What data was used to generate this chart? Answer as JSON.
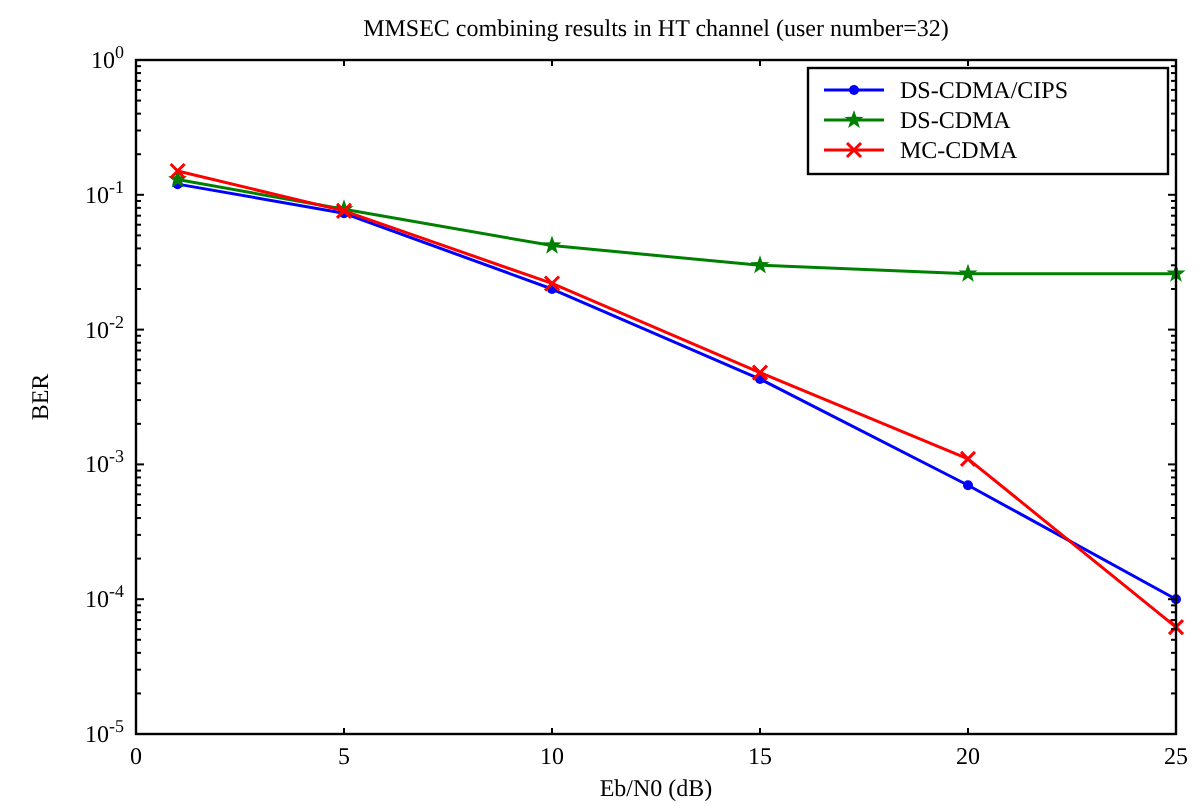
{
  "chart_data": {
    "type": "line",
    "title": "MMSEC combining results in HT channel (user number=32)",
    "xlabel": "Eb/N0 (dB)",
    "ylabel": "BER",
    "log": "y",
    "grid": false,
    "legend": "top right",
    "xlim": [
      0,
      25
    ],
    "xticks": [
      0,
      5,
      10,
      15,
      20,
      25
    ],
    "ylim": [
      1e-05,
      1
    ],
    "yticks": [
      {
        "value": 1e-05,
        "label": "10$^{-5}$"
      },
      {
        "value": 2e-05,
        "label": null
      },
      {
        "value": 3e-05,
        "label": null
      },
      {
        "value": 4e-05,
        "label": null
      },
      {
        "value": 5e-05,
        "label": null
      },
      {
        "value": 6e-05,
        "label": null
      },
      {
        "value": 7e-05,
        "label": null
      },
      {
        "value": 8e-05,
        "label": null
      },
      {
        "value": 9e-05,
        "label": null
      },
      {
        "value": 0.0001,
        "label": "10$^{-4}$"
      },
      {
        "value": 0.0002,
        "label": null
      },
      {
        "value": 0.0003,
        "label": null
      },
      {
        "value": 0.0004,
        "label": null
      },
      {
        "value": 0.0005,
        "label": null
      },
      {
        "value": 0.0006,
        "label": null
      },
      {
        "value": 0.0007,
        "label": null
      },
      {
        "value": 0.0008,
        "label": null
      },
      {
        "value": 0.0009,
        "label": null
      },
      {
        "value": 0.001,
        "label": "10$^{-3}$"
      },
      {
        "value": 0.002,
        "label": null
      },
      {
        "value": 0.003,
        "label": null
      },
      {
        "value": 0.004,
        "label": null
      },
      {
        "value": 0.005,
        "label": null
      },
      {
        "value": 0.006,
        "label": null
      },
      {
        "value": 0.007,
        "label": null
      },
      {
        "value": 0.008,
        "label": null
      },
      {
        "value": 0.009,
        "label": null
      },
      {
        "value": 0.01,
        "label": "10$^{-2}$"
      },
      {
        "value": 0.02,
        "label": null
      },
      {
        "value": 0.03,
        "label": null
      },
      {
        "value": 0.04,
        "label": null
      },
      {
        "value": 0.05,
        "label": null
      },
      {
        "value": 0.06,
        "label": null
      },
      {
        "value": 0.07,
        "label": null
      },
      {
        "value": 0.08,
        "label": null
      },
      {
        "value": 0.09,
        "label": null
      },
      {
        "value": 0.1,
        "label": "10$^{-1}$"
      },
      {
        "value": 0.2,
        "label": null
      },
      {
        "value": 0.3,
        "label": null
      },
      {
        "value": 0.4,
        "label": null
      },
      {
        "value": 0.5,
        "label": null
      },
      {
        "value": 0.6,
        "label": null
      },
      {
        "value": 0.7,
        "label": null
      },
      {
        "value": 0.8,
        "label": null
      },
      {
        "value": 0.9,
        "label": null
      },
      {
        "value": 1,
        "label": "10$^{0}$"
      }
    ],
    "x": [
      1,
      5,
      10,
      15,
      20,
      25
    ],
    "series": [
      {
        "name": "DS-CDMA/CIPS",
        "color": "#0000ff",
        "marker": "circle",
        "values": [
          0.12,
          0.073,
          0.02,
          0.0043,
          0.0007,
          0.0001
        ]
      },
      {
        "name": "DS-CDMA",
        "color": "#008000",
        "marker": "star",
        "values": [
          0.13,
          0.078,
          0.042,
          0.03,
          0.026,
          0.026
        ]
      },
      {
        "name": "MC-CDMA",
        "color": "#ff0000",
        "marker": "cross",
        "values": [
          0.15,
          0.076,
          0.022,
          0.0048,
          0.0011,
          6.2e-05
        ]
      }
    ]
  }
}
